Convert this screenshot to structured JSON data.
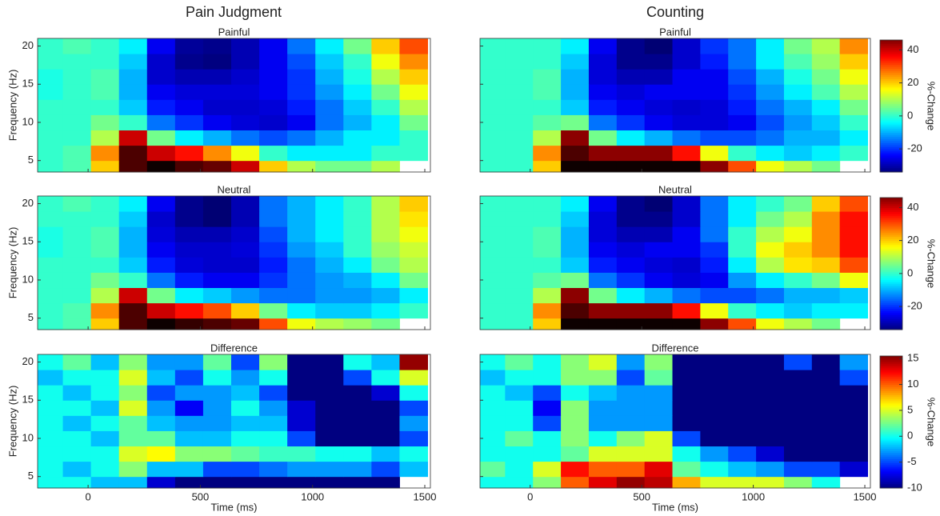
{
  "column_titles": [
    "Pain Judgment",
    "Counting"
  ],
  "chart_data": [
    {
      "type": "heatmap",
      "title": "Painful",
      "ylabel": "Frequency (Hz)",
      "colormap": "jet",
      "clim": [
        -34,
        46
      ],
      "x": [
        -175,
        -50,
        75,
        200,
        325,
        450,
        575,
        700,
        825,
        950,
        1075,
        1200,
        1325,
        1450
      ],
      "y": [
        4,
        6,
        8,
        10,
        12,
        14,
        16,
        18,
        20
      ],
      "xlim": [
        -225,
        1525
      ],
      "ylim": [
        3.5,
        21
      ],
      "xticks": [
        0,
        500,
        1000,
        1500
      ],
      "yticks": [
        5,
        10,
        15,
        20
      ],
      "values": [
        [
          0,
          2,
          20,
          50,
          55,
          50,
          48,
          40,
          20,
          10,
          5,
          5,
          10,
          null
        ],
        [
          0,
          2,
          25,
          50,
          40,
          35,
          25,
          15,
          0,
          -5,
          -5,
          -5,
          0,
          0
        ],
        [
          0,
          0,
          10,
          40,
          5,
          -5,
          -10,
          -15,
          -18,
          -15,
          -10,
          -5,
          -5,
          0
        ],
        [
          0,
          0,
          5,
          0,
          -15,
          -20,
          -25,
          -27,
          -28,
          -25,
          -15,
          -10,
          -5,
          5
        ],
        [
          0,
          0,
          0,
          -8,
          -22,
          -25,
          -28,
          -28,
          -27,
          -22,
          -15,
          -8,
          0,
          10
        ],
        [
          -2,
          0,
          2,
          -10,
          -25,
          -27,
          -27,
          -27,
          -25,
          -20,
          -12,
          -5,
          5,
          15
        ],
        [
          -2,
          0,
          2,
          -10,
          -28,
          -30,
          -30,
          -28,
          -25,
          -20,
          -10,
          -2,
          10,
          20
        ],
        [
          0,
          0,
          0,
          -8,
          -28,
          -33,
          -34,
          -30,
          -25,
          -18,
          -8,
          0,
          15,
          25
        ],
        [
          0,
          2,
          0,
          -5,
          -25,
          -32,
          -33,
          -30,
          -25,
          -15,
          -5,
          5,
          20,
          30
        ]
      ]
    },
    {
      "type": "heatmap",
      "title": "Neutral",
      "ylabel": "Frequency (Hz)",
      "colormap": "jet",
      "clim": [
        -34,
        46
      ],
      "x": [
        -175,
        -50,
        75,
        200,
        325,
        450,
        575,
        700,
        825,
        950,
        1075,
        1200,
        1325,
        1450
      ],
      "y": [
        4,
        6,
        8,
        10,
        12,
        14,
        16,
        18,
        20
      ],
      "xlim": [
        -225,
        1525
      ],
      "ylim": [
        3.5,
        21
      ],
      "xticks": [
        0,
        500,
        1000,
        1500
      ],
      "yticks": [
        5,
        10,
        15,
        20
      ],
      "values": [
        [
          0,
          2,
          20,
          50,
          55,
          52,
          50,
          48,
          30,
          15,
          10,
          8,
          5,
          null
        ],
        [
          0,
          2,
          25,
          50,
          40,
          35,
          30,
          20,
          5,
          -5,
          -8,
          -8,
          -5,
          0
        ],
        [
          0,
          0,
          10,
          40,
          5,
          -5,
          -8,
          -12,
          -15,
          -15,
          -12,
          -12,
          -10,
          -5
        ],
        [
          0,
          0,
          5,
          0,
          -15,
          -22,
          -25,
          -25,
          -20,
          -15,
          -12,
          -10,
          -5,
          5
        ],
        [
          0,
          0,
          0,
          -8,
          -22,
          -27,
          -28,
          -28,
          -22,
          -15,
          -10,
          -5,
          5,
          10
        ],
        [
          -2,
          0,
          2,
          -10,
          -25,
          -28,
          -28,
          -27,
          -20,
          -12,
          -8,
          0,
          8,
          12
        ],
        [
          -2,
          0,
          2,
          -10,
          -27,
          -30,
          -30,
          -28,
          -18,
          -10,
          -5,
          0,
          10,
          15
        ],
        [
          0,
          0,
          0,
          -8,
          -28,
          -33,
          -35,
          -30,
          -15,
          -10,
          -5,
          0,
          10,
          18
        ],
        [
          0,
          2,
          0,
          -5,
          -25,
          -33,
          -35,
          -30,
          -15,
          -10,
          -5,
          0,
          10,
          20
        ]
      ]
    },
    {
      "type": "heatmap",
      "title": "Difference",
      "ylabel": "Frequency (Hz)",
      "xlabel": "Time (ms)",
      "colormap": "jet",
      "clim": [
        -10,
        15.5
      ],
      "x": [
        -175,
        -50,
        75,
        200,
        325,
        450,
        575,
        700,
        825,
        950,
        1075,
        1200,
        1325,
        1450
      ],
      "y": [
        4,
        6,
        8,
        10,
        12,
        14,
        16,
        18,
        20
      ],
      "xlim": [
        -225,
        1525
      ],
      "ylim": [
        3.5,
        21
      ],
      "xticks": [
        0,
        500,
        1000,
        1500
      ],
      "yticks": [
        5,
        10,
        15,
        20
      ],
      "values": [
        [
          0,
          0,
          -2,
          -2,
          -8,
          -10,
          -10,
          -10,
          -10,
          -10,
          -10,
          -10,
          -10,
          null
        ],
        [
          0,
          -2,
          0,
          3,
          -2,
          -2,
          -5,
          -5,
          -4,
          -3,
          -3,
          -3,
          -5,
          -2
        ],
        [
          0,
          0,
          0,
          5,
          6,
          3,
          3,
          2,
          1,
          1,
          0,
          0,
          -2,
          0
        ],
        [
          0,
          0,
          -2,
          2,
          2,
          -2,
          -2,
          0,
          0,
          -5,
          -10,
          -10,
          -10,
          -5
        ],
        [
          0,
          -2,
          0,
          2,
          -2,
          -3,
          -3,
          -2,
          -2,
          -8,
          -10,
          -10,
          -10,
          -3
        ],
        [
          0,
          0,
          -2,
          5,
          -3,
          -7,
          -3,
          0,
          -3,
          -8,
          -10,
          -10,
          -10,
          -5
        ],
        [
          0,
          -2,
          0,
          3,
          -5,
          -3,
          -3,
          -2,
          -5,
          -10,
          -10,
          -10,
          -8,
          0
        ],
        [
          -2,
          0,
          0,
          5,
          -2,
          -5,
          0,
          -3,
          0,
          -10,
          -10,
          -5,
          0,
          5
        ],
        [
          0,
          2,
          -2,
          3,
          -3,
          -3,
          2,
          -5,
          3,
          -10,
          -10,
          0,
          -2,
          15
        ]
      ]
    },
    {
      "type": "heatmap",
      "title": "Painful",
      "colormap": "jet",
      "clim": [
        -34,
        46
      ],
      "x": [
        -175,
        -50,
        75,
        200,
        325,
        450,
        575,
        700,
        825,
        950,
        1075,
        1200,
        1325,
        1450
      ],
      "y": [
        4,
        6,
        8,
        10,
        12,
        14,
        16,
        18,
        20
      ],
      "xlim": [
        -225,
        1525
      ],
      "ylim": [
        3.5,
        21
      ],
      "xticks": [
        0,
        500,
        1000,
        1500
      ],
      "yticks": [
        5,
        10,
        15,
        20
      ],
      "colorbar": {
        "label": "%-Change",
        "ticks": [
          -20,
          0,
          20,
          40
        ]
      },
      "values": [
        [
          0,
          0,
          20,
          55,
          55,
          55,
          55,
          55,
          45,
          30,
          15,
          10,
          5,
          null
        ],
        [
          0,
          0,
          25,
          50,
          45,
          45,
          45,
          35,
          15,
          0,
          -5,
          -8,
          -5,
          0
        ],
        [
          0,
          0,
          10,
          45,
          5,
          -5,
          -10,
          -15,
          -18,
          -18,
          -15,
          -10,
          -10,
          -5
        ],
        [
          0,
          0,
          3,
          5,
          -15,
          -20,
          -25,
          -27,
          -27,
          -25,
          -18,
          -12,
          -8,
          0
        ],
        [
          0,
          0,
          0,
          -8,
          -22,
          -25,
          -27,
          -28,
          -27,
          -22,
          -15,
          -10,
          -5,
          5
        ],
        [
          0,
          0,
          2,
          -10,
          -25,
          -27,
          -25,
          -25,
          -25,
          -20,
          -12,
          -5,
          2,
          10
        ],
        [
          0,
          0,
          2,
          -10,
          -27,
          -30,
          -30,
          -25,
          -25,
          -18,
          -10,
          -2,
          5,
          15
        ],
        [
          0,
          0,
          0,
          -8,
          -27,
          -33,
          -33,
          -28,
          -22,
          -15,
          -5,
          2,
          8,
          20
        ],
        [
          0,
          0,
          0,
          -5,
          -25,
          -33,
          -35,
          -28,
          -20,
          -15,
          -5,
          5,
          10,
          25
        ]
      ]
    },
    {
      "type": "heatmap",
      "title": "Neutral",
      "colormap": "jet",
      "clim": [
        -34,
        46
      ],
      "x": [
        -175,
        -50,
        75,
        200,
        325,
        450,
        575,
        700,
        825,
        950,
        1075,
        1200,
        1325,
        1450
      ],
      "y": [
        4,
        6,
        8,
        10,
        12,
        14,
        16,
        18,
        20
      ],
      "xlim": [
        -225,
        1525
      ],
      "ylim": [
        3.5,
        21
      ],
      "xticks": [
        0,
        500,
        1000,
        1500
      ],
      "yticks": [
        5,
        10,
        15,
        20
      ],
      "colorbar": {
        "label": "%-Change",
        "ticks": [
          -20,
          0,
          20,
          40
        ]
      },
      "values": [
        [
          0,
          0,
          20,
          55,
          55,
          55,
          55,
          55,
          45,
          30,
          15,
          10,
          5,
          null
        ],
        [
          0,
          0,
          25,
          50,
          45,
          45,
          45,
          35,
          15,
          0,
          -5,
          -8,
          -5,
          -5
        ],
        [
          0,
          0,
          10,
          45,
          5,
          -5,
          -10,
          -15,
          -18,
          -18,
          -15,
          -10,
          -10,
          -8
        ],
        [
          0,
          0,
          3,
          5,
          -15,
          -20,
          -25,
          -27,
          -25,
          -12,
          -5,
          0,
          5,
          15
        ],
        [
          0,
          0,
          0,
          -8,
          -22,
          -25,
          -27,
          -28,
          -22,
          -5,
          10,
          18,
          20,
          30
        ],
        [
          0,
          0,
          2,
          -10,
          -25,
          -27,
          -25,
          -25,
          -20,
          0,
          15,
          20,
          25,
          35
        ],
        [
          0,
          0,
          2,
          -10,
          -27,
          -30,
          -30,
          -25,
          -15,
          0,
          10,
          15,
          25,
          35
        ],
        [
          0,
          0,
          0,
          -8,
          -27,
          -33,
          -33,
          -28,
          -15,
          -5,
          5,
          10,
          25,
          35
        ],
        [
          0,
          0,
          0,
          -5,
          -25,
          -33,
          -35,
          -28,
          -15,
          -5,
          0,
          5,
          20,
          30
        ]
      ]
    },
    {
      "type": "heatmap",
      "title": "Difference",
      "xlabel": "Time (ms)",
      "colormap": "jet",
      "clim": [
        -10,
        15.5
      ],
      "x": [
        -175,
        -50,
        75,
        200,
        325,
        450,
        575,
        700,
        825,
        950,
        1075,
        1200,
        1325,
        1450
      ],
      "y": [
        4,
        6,
        8,
        10,
        12,
        14,
        16,
        18,
        20
      ],
      "xlim": [
        -225,
        1525
      ],
      "ylim": [
        3.5,
        21
      ],
      "xticks": [
        0,
        500,
        1000,
        1500
      ],
      "yticks": [
        5,
        10,
        15,
        20
      ],
      "colorbar": {
        "label": "%-Change",
        "ticks": [
          -10,
          -5,
          0,
          5,
          10,
          15
        ]
      },
      "values": [
        [
          0,
          0,
          3,
          10,
          13,
          15,
          14,
          8,
          5,
          5,
          5,
          3,
          0,
          null
        ],
        [
          2,
          0,
          5,
          12,
          10,
          10,
          13,
          2,
          0,
          -2,
          -3,
          -5,
          -5,
          -8
        ],
        [
          0,
          0,
          0,
          2,
          5,
          5,
          5,
          0,
          -3,
          -5,
          -8,
          -10,
          -10,
          -10
        ],
        [
          0,
          2,
          0,
          3,
          0,
          3,
          5,
          -5,
          -10,
          -10,
          -10,
          -10,
          -10,
          -10
        ],
        [
          0,
          0,
          -5,
          3,
          -3,
          -3,
          -3,
          -10,
          -10,
          -10,
          -10,
          -10,
          -10,
          -10
        ],
        [
          0,
          0,
          -7,
          3,
          -3,
          -3,
          -3,
          -10,
          -10,
          -10,
          -10,
          -10,
          -10,
          -10
        ],
        [
          0,
          -2,
          -5,
          0,
          -2,
          -3,
          -3,
          -10,
          -10,
          -10,
          -10,
          -10,
          -10,
          -10
        ],
        [
          -2,
          0,
          0,
          3,
          3,
          -5,
          2,
          -10,
          -10,
          -10,
          -10,
          -10,
          -10,
          -5
        ],
        [
          0,
          2,
          0,
          3,
          5,
          -3,
          3,
          -10,
          -10,
          -10,
          -10,
          -5,
          -10,
          -3
        ]
      ]
    }
  ]
}
